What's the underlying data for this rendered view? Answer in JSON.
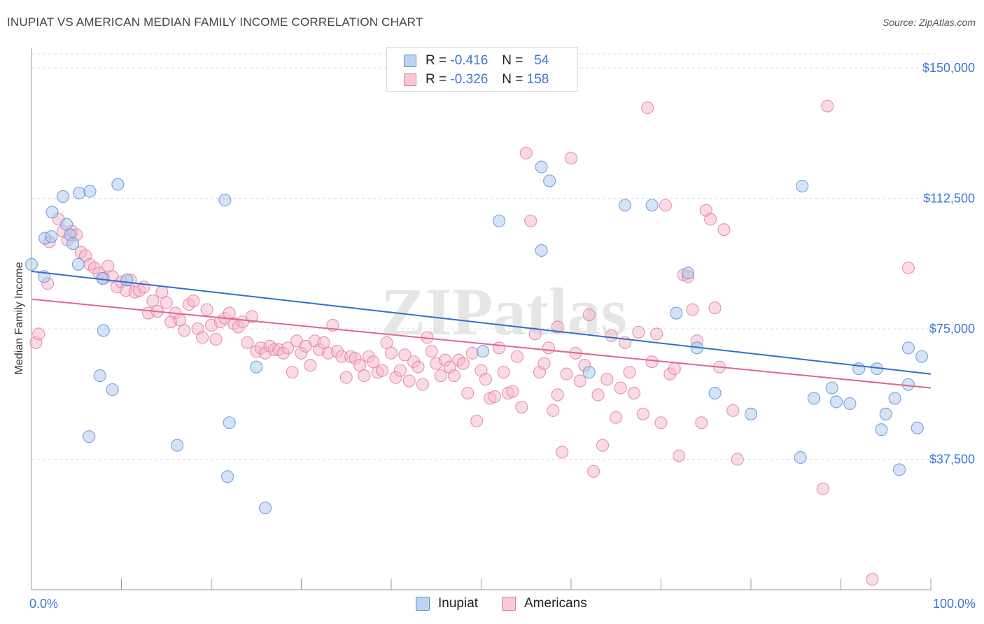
{
  "title": "INUPIAT VS AMERICAN MEDIAN FAMILY INCOME CORRELATION CHART",
  "source": "Source: ZipAtlas.com",
  "watermark": "ZIPatlas",
  "legend": {
    "rows": [
      {
        "r_label": "R =",
        "r_value": "-0.416",
        "n_label": "N =",
        "n_value": "54"
      },
      {
        "r_label": "R =",
        "r_value": "-0.326",
        "n_label": "N =",
        "n_value": "158"
      }
    ]
  },
  "bottom_legend": {
    "series1": "Inupiat",
    "series2": "Americans"
  },
  "colors": {
    "inupiat_fill": "#a9c8ee",
    "inupiat_stroke": "#5b8fd6",
    "inupiat_line": "#2f6fd0",
    "americans_fill": "#f6b8cb",
    "americans_stroke": "#e07a9c",
    "americans_line": "#e0668f",
    "axis_label_blue": "#3a78d0",
    "grid": "#dddddd"
  },
  "chart_data": {
    "type": "scatter",
    "title": "INUPIAT VS AMERICAN MEDIAN FAMILY INCOME CORRELATION CHART",
    "xlabel": "",
    "ylabel": "Median Family Income",
    "x_tick_labels": [
      "0.0%",
      "100.0%"
    ],
    "y_tick_labels": [
      "$37,500",
      "$75,000",
      "$112,500",
      "$150,000"
    ],
    "y_ticks": [
      37500,
      75000,
      112500,
      150000
    ],
    "xlim": [
      0,
      100
    ],
    "ylim": [
      0,
      154000
    ],
    "grid": true,
    "legend_position": "top-center",
    "series": [
      {
        "name": "Inupiat",
        "R": -0.416,
        "N": 54,
        "trend": {
          "x": [
            0,
            100
          ],
          "y": [
            91500,
            62000
          ]
        },
        "points": [
          [
            0.0,
            93500
          ],
          [
            1.5,
            101000
          ],
          [
            2.2,
            101500
          ],
          [
            1.4,
            90000
          ],
          [
            2.3,
            108500
          ],
          [
            3.5,
            113000
          ],
          [
            3.9,
            105000
          ],
          [
            4.3,
            102000
          ],
          [
            4.6,
            99500
          ],
          [
            5.3,
            114000
          ],
          [
            5.2,
            93500
          ],
          [
            6.5,
            114500
          ],
          [
            7.9,
            89500
          ],
          [
            8.0,
            74500
          ],
          [
            9.6,
            116500
          ],
          [
            7.6,
            61500
          ],
          [
            9.0,
            57500
          ],
          [
            6.4,
            44000
          ],
          [
            10.6,
            89000
          ],
          [
            16.2,
            41500
          ],
          [
            22.0,
            48000
          ],
          [
            21.5,
            112000
          ],
          [
            21.8,
            32500
          ],
          [
            25.0,
            64000
          ],
          [
            26.0,
            23500
          ],
          [
            50.2,
            68500
          ],
          [
            52.0,
            106000
          ],
          [
            56.7,
            97500
          ],
          [
            56.7,
            121500
          ],
          [
            57.6,
            117500
          ],
          [
            62.0,
            62500
          ],
          [
            66.0,
            110500
          ],
          [
            69.0,
            110500
          ],
          [
            71.7,
            79500
          ],
          [
            73.0,
            91000
          ],
          [
            74.0,
            69500
          ],
          [
            76.0,
            56500
          ],
          [
            80.0,
            50500
          ],
          [
            85.5,
            38000
          ],
          [
            85.7,
            116000
          ],
          [
            87.0,
            55000
          ],
          [
            89.0,
            58000
          ],
          [
            91.0,
            53500
          ],
          [
            92.0,
            63500
          ],
          [
            94.0,
            63500
          ],
          [
            94.5,
            46000
          ],
          [
            95.0,
            50500
          ],
          [
            96.0,
            55000
          ],
          [
            97.5,
            59000
          ],
          [
            99.0,
            67000
          ],
          [
            96.5,
            34500
          ],
          [
            98.5,
            46500
          ],
          [
            97.5,
            69500
          ],
          [
            89.5,
            54000
          ]
        ]
      },
      {
        "name": "Americans",
        "R": -0.326,
        "N": 158,
        "trend": {
          "x": [
            0,
            100
          ],
          "y": [
            83500,
            58000
          ]
        },
        "points": [
          [
            0.5,
            71000
          ],
          [
            0.8,
            73500
          ],
          [
            1.8,
            88000
          ],
          [
            2.0,
            100000
          ],
          [
            3.0,
            106500
          ],
          [
            3.5,
            103000
          ],
          [
            4.0,
            100500
          ],
          [
            4.5,
            103000
          ],
          [
            5.0,
            102000
          ],
          [
            5.5,
            97000
          ],
          [
            6.0,
            96000
          ],
          [
            6.5,
            93500
          ],
          [
            7.0,
            92500
          ],
          [
            7.5,
            91000
          ],
          [
            8.0,
            89500
          ],
          [
            8.5,
            93000
          ],
          [
            9.0,
            90000
          ],
          [
            9.5,
            87000
          ],
          [
            10.0,
            88500
          ],
          [
            10.5,
            86000
          ],
          [
            11.0,
            89000
          ],
          [
            11.5,
            85500
          ],
          [
            12.0,
            86000
          ],
          [
            12.5,
            87000
          ],
          [
            13.0,
            79500
          ],
          [
            13.5,
            83000
          ],
          [
            14.0,
            80000
          ],
          [
            14.5,
            85500
          ],
          [
            15.0,
            82500
          ],
          [
            15.5,
            77000
          ],
          [
            16.0,
            79500
          ],
          [
            16.5,
            77500
          ],
          [
            17.0,
            74500
          ],
          [
            17.5,
            82000
          ],
          [
            18.0,
            83000
          ],
          [
            18.5,
            75000
          ],
          [
            19.0,
            72500
          ],
          [
            19.5,
            80500
          ],
          [
            20.0,
            76000
          ],
          [
            20.5,
            72000
          ],
          [
            21.0,
            77000
          ],
          [
            21.5,
            78000
          ],
          [
            22.0,
            79500
          ],
          [
            22.5,
            76500
          ],
          [
            23.0,
            75500
          ],
          [
            23.5,
            77000
          ],
          [
            24.0,
            71000
          ],
          [
            24.5,
            78500
          ],
          [
            25.0,
            68500
          ],
          [
            25.5,
            69500
          ],
          [
            26.0,
            68000
          ],
          [
            26.5,
            70000
          ],
          [
            27.0,
            69000
          ],
          [
            27.5,
            69000
          ],
          [
            28.0,
            68000
          ],
          [
            28.5,
            69500
          ],
          [
            29.0,
            62500
          ],
          [
            29.5,
            71500
          ],
          [
            30.0,
            68000
          ],
          [
            30.5,
            70000
          ],
          [
            31.0,
            64500
          ],
          [
            31.5,
            71500
          ],
          [
            32.0,
            69000
          ],
          [
            32.5,
            71000
          ],
          [
            33.0,
            68000
          ],
          [
            33.5,
            76000
          ],
          [
            34.0,
            68500
          ],
          [
            34.5,
            67000
          ],
          [
            35.0,
            61000
          ],
          [
            35.5,
            67000
          ],
          [
            36.0,
            66500
          ],
          [
            36.5,
            64500
          ],
          [
            37.0,
            61500
          ],
          [
            37.5,
            67000
          ],
          [
            38.0,
            65500
          ],
          [
            38.5,
            62500
          ],
          [
            39.0,
            63000
          ],
          [
            39.5,
            71000
          ],
          [
            40.0,
            68000
          ],
          [
            40.5,
            61000
          ],
          [
            41.0,
            63000
          ],
          [
            41.5,
            67500
          ],
          [
            42.0,
            60000
          ],
          [
            42.5,
            65500
          ],
          [
            43.0,
            64000
          ],
          [
            43.5,
            59000
          ],
          [
            44.0,
            72500
          ],
          [
            44.5,
            68500
          ],
          [
            45.0,
            65000
          ],
          [
            45.5,
            61500
          ],
          [
            46.0,
            66000
          ],
          [
            46.5,
            64000
          ],
          [
            47.0,
            61500
          ],
          [
            47.5,
            66000
          ],
          [
            48.0,
            65000
          ],
          [
            48.5,
            56500
          ],
          [
            49.0,
            68000
          ],
          [
            49.5,
            48500
          ],
          [
            50.0,
            63000
          ],
          [
            50.5,
            60500
          ],
          [
            51.0,
            55000
          ],
          [
            51.5,
            55500
          ],
          [
            52.0,
            69500
          ],
          [
            52.5,
            62500
          ],
          [
            53.0,
            56500
          ],
          [
            53.5,
            57000
          ],
          [
            54.0,
            67000
          ],
          [
            54.5,
            52500
          ],
          [
            55.0,
            125500
          ],
          [
            55.5,
            106000
          ],
          [
            56.0,
            73500
          ],
          [
            56.5,
            62500
          ],
          [
            57.0,
            65000
          ],
          [
            57.5,
            69500
          ],
          [
            58.0,
            51500
          ],
          [
            58.5,
            75500
          ],
          [
            59.0,
            39500
          ],
          [
            59.5,
            62000
          ],
          [
            60.0,
            124000
          ],
          [
            60.5,
            68000
          ],
          [
            61.0,
            60000
          ],
          [
            61.5,
            64500
          ],
          [
            62.0,
            79000
          ],
          [
            62.5,
            34000
          ],
          [
            63.0,
            56000
          ],
          [
            63.5,
            41500
          ],
          [
            64.0,
            60500
          ],
          [
            64.5,
            73000
          ],
          [
            65.0,
            49500
          ],
          [
            65.5,
            58000
          ],
          [
            66.0,
            71000
          ],
          [
            66.5,
            62500
          ],
          [
            67.0,
            56500
          ],
          [
            67.5,
            74000
          ],
          [
            68.0,
            50500
          ],
          [
            68.5,
            138500
          ],
          [
            69.0,
            65500
          ],
          [
            69.5,
            73500
          ],
          [
            70.0,
            48000
          ],
          [
            70.5,
            110500
          ],
          [
            71.0,
            62000
          ],
          [
            71.5,
            63500
          ],
          [
            72.0,
            38500
          ],
          [
            72.5,
            90500
          ],
          [
            73.0,
            90000
          ],
          [
            73.5,
            80500
          ],
          [
            74.0,
            71500
          ],
          [
            74.5,
            48000
          ],
          [
            75.0,
            109000
          ],
          [
            75.5,
            106500
          ],
          [
            76.0,
            81000
          ],
          [
            76.5,
            64000
          ],
          [
            77.0,
            103500
          ],
          [
            78.0,
            51500
          ],
          [
            78.5,
            37500
          ],
          [
            88.0,
            29000
          ],
          [
            88.5,
            139000
          ],
          [
            93.5,
            3000
          ],
          [
            97.5,
            92500
          ],
          [
            58.5,
            56000
          ]
        ]
      }
    ]
  }
}
